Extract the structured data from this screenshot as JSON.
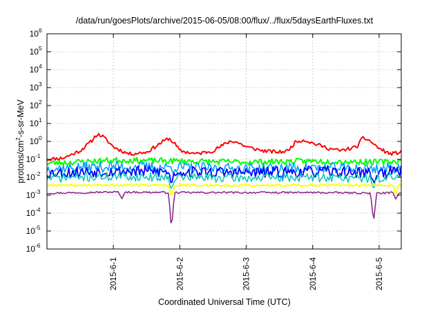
{
  "chart_data": {
    "type": "line",
    "title": "/data/run/goesPlots/archive/2015-06-05/08:00/flux/../flux/5daysEarthFluxes.txt",
    "xlabel": "Coordinated Universal Time (UTC)",
    "ylabel": {
      "base": "protons/cm",
      "exp": "2",
      "rest": "-s-sr-MeV"
    },
    "yscale": "log",
    "ylim": [
      1e-06,
      1000000.0
    ],
    "xlim": [
      "2015-05-31 00:00",
      "2015-06-05 08:00"
    ],
    "grid": true,
    "x_ticks": [
      {
        "x": "2015-06-01 00:00",
        "label": "2015-6-1"
      },
      {
        "x": "2015-06-02 00:00",
        "label": "2015-6-2"
      },
      {
        "x": "2015-06-03 00:00",
        "label": "2015-6-3"
      },
      {
        "x": "2015-06-04 00:00",
        "label": "2015-6-4"
      },
      {
        "x": "2015-06-05 00:00",
        "label": "2015-6-5"
      }
    ],
    "y_ticks": [
      {
        "base": "10",
        "exp": "6"
      },
      {
        "base": "10",
        "exp": "5"
      },
      {
        "base": "10",
        "exp": "4"
      },
      {
        "base": "10",
        "exp": "3"
      },
      {
        "base": "10",
        "exp": "2"
      },
      {
        "base": "10",
        "exp": "1"
      },
      {
        "base": "10",
        "exp": "0"
      },
      {
        "base": "10",
        "exp": "-1"
      },
      {
        "base": "10",
        "exp": "-2"
      },
      {
        "base": "10",
        "exp": "-3"
      },
      {
        "base": "10",
        "exp": "-4"
      },
      {
        "base": "10",
        "exp": "-5"
      },
      {
        "base": "10",
        "exp": "-6"
      }
    ],
    "series": [
      {
        "color": "#ff0000",
        "width": 2,
        "noise": 0.1,
        "seed": 11,
        "x": [
          "2015-05-31 00:00",
          "2015-05-31 06:00",
          "2015-05-31 12:00",
          "2015-05-31 16:00",
          "2015-05-31 18:00",
          "2015-05-31 20:00",
          "2015-06-01 00:00",
          "2015-06-01 04:00",
          "2015-06-01 06:00",
          "2015-06-01 12:00",
          "2015-06-01 18:00",
          "2015-06-01 20:00",
          "2015-06-01 22:00",
          "2015-06-02 00:00",
          "2015-06-02 06:00",
          "2015-06-02 12:00",
          "2015-06-02 18:00",
          "2015-06-02 20:00",
          "2015-06-03 00:00",
          "2015-06-03 06:00",
          "2015-06-03 12:00",
          "2015-06-03 15:00",
          "2015-06-03 18:00",
          "2015-06-03 21:00",
          "2015-06-04 00:00",
          "2015-06-04 06:00",
          "2015-06-04 10:00",
          "2015-06-04 16:00",
          "2015-06-04 18:00",
          "2015-06-04 20:00",
          "2015-06-05 00:00",
          "2015-06-05 04:00",
          "2015-06-05 08:00"
        ],
        "y": [
          0.1,
          0.12,
          0.3,
          1.0,
          2.5,
          2.0,
          0.5,
          0.25,
          0.2,
          0.25,
          1.0,
          1.5,
          0.8,
          0.3,
          0.2,
          0.3,
          1.0,
          1.0,
          0.5,
          0.3,
          0.25,
          0.3,
          1.0,
          1.2,
          0.8,
          0.4,
          0.3,
          0.5,
          1.5,
          1.3,
          0.4,
          0.2,
          0.25
        ]
      },
      {
        "color": "#00ff00",
        "width": 2,
        "noise": 0.16,
        "seed": 23,
        "x": [
          "2015-05-31 00:00",
          "2015-06-01 00:00",
          "2015-06-02 00:00",
          "2015-06-03 00:00",
          "2015-06-04 00:00",
          "2015-06-05 00:00",
          "2015-06-05 08:00"
        ],
        "y": [
          0.06,
          0.09,
          0.08,
          0.07,
          0.08,
          0.07,
          0.08
        ]
      },
      {
        "color": "#00a0ff",
        "width": 1.6,
        "noise": 0.3,
        "seed": 37,
        "x": [
          "2015-05-31 00:00",
          "2015-06-01 00:00",
          "2015-06-02 00:00",
          "2015-06-03 00:00",
          "2015-06-04 00:00",
          "2015-06-05 00:00",
          "2015-06-05 08:00"
        ],
        "y": [
          0.03,
          0.04,
          0.035,
          0.03,
          0.035,
          0.03,
          0.035
        ]
      },
      {
        "color": "#0000ff",
        "width": 1.8,
        "noise": 0.32,
        "seed": 53,
        "x": [
          "2015-05-31 00:00",
          "2015-06-01 00:00",
          "2015-06-02 00:00",
          "2015-06-03 00:00",
          "2015-06-04 00:00",
          "2015-06-05 00:00",
          "2015-06-05 08:00"
        ],
        "y": [
          0.018,
          0.022,
          0.02,
          0.018,
          0.02,
          0.018,
          0.02
        ],
        "dips": [
          {
            "x": "2015-06-01 21:00",
            "y": 0.004
          },
          {
            "x": "2015-06-04 22:00",
            "y": 0.004
          }
        ]
      },
      {
        "color": "#00c8b4",
        "width": 1.5,
        "noise": 0.25,
        "seed": 71,
        "x": [
          "2015-05-31 00:00",
          "2015-06-01 00:00",
          "2015-06-02 00:00",
          "2015-06-03 00:00",
          "2015-06-04 00:00",
          "2015-06-05 00:00",
          "2015-06-05 08:00"
        ],
        "y": [
          0.009,
          0.011,
          0.01,
          0.009,
          0.01,
          0.009,
          0.01
        ],
        "dips": [
          {
            "x": "2015-06-01 21:00",
            "y": 0.002
          },
          {
            "x": "2015-06-04 22:00",
            "y": 0.002
          }
        ]
      },
      {
        "color": "#ffff00",
        "width": 2,
        "noise": 0.06,
        "seed": 89,
        "x": [
          "2015-05-31 00:00",
          "2015-06-01 00:00",
          "2015-06-02 00:00",
          "2015-06-03 00:00",
          "2015-06-04 00:00",
          "2015-06-05 00:00",
          "2015-06-05 08:00"
        ],
        "y": [
          0.0035,
          0.0037,
          0.0036,
          0.0035,
          0.0036,
          0.0035,
          0.0036
        ],
        "dips": [
          {
            "x": "2015-06-01 21:00",
            "y": 0.0008
          },
          {
            "x": "2015-06-05 06:00",
            "y": 0.0011
          }
        ]
      },
      {
        "color": "#8a2a86",
        "width": 1.6,
        "noise": 0.05,
        "seed": 97,
        "x": [
          "2015-05-31 00:00",
          "2015-06-01 00:00",
          "2015-06-02 00:00",
          "2015-06-03 00:00",
          "2015-06-04 00:00",
          "2015-06-05 00:00",
          "2015-06-05 08:00"
        ],
        "y": [
          0.0013,
          0.0015,
          0.0014,
          0.0014,
          0.0014,
          0.0013,
          0.0014
        ],
        "dips": [
          {
            "x": "2015-06-01 21:00",
            "y": 1.2e-05
          },
          {
            "x": "2015-06-04 22:00",
            "y": 3e-05
          },
          {
            "x": "2015-06-01 03:00",
            "y": 0.0006
          },
          {
            "x": "2015-06-05 06:00",
            "y": 0.0006
          }
        ]
      }
    ]
  }
}
